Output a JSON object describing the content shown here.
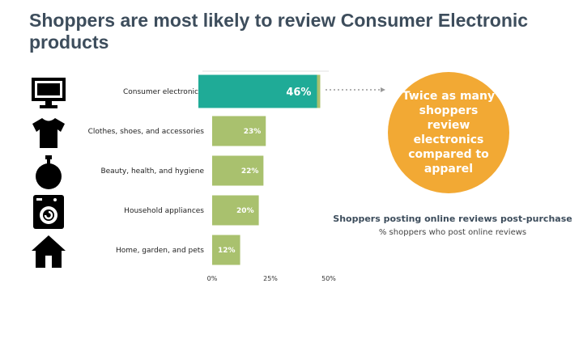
{
  "slide": {
    "title": "Shoppers are most likely to review Consumer Electronic products"
  },
  "icons": [
    {
      "name": "monitor-icon"
    },
    {
      "name": "tshirt-icon"
    },
    {
      "name": "perfume-bottle-icon"
    },
    {
      "name": "washing-machine-icon"
    },
    {
      "name": "house-icon"
    }
  ],
  "callout": {
    "text": "Twice as many shoppers review electronics compared to apparel"
  },
  "colors": {
    "highlight_bar": "#1fab97",
    "bar": "#a9c16e",
    "callout": "#f2a934",
    "title": "#3d4d5c"
  },
  "chart_data": {
    "type": "bar",
    "orientation": "horizontal",
    "title": "Shoppers posting online reviews post-purchase",
    "subtitle": "% shoppers who post online reviews",
    "xlabel": "",
    "ylabel": "",
    "categories": [
      "Consumer electronics",
      "Clothes, shoes, and accessories",
      "Beauty, health, and hygiene",
      "Household appliances",
      "Home, garden, and pets"
    ],
    "values": [
      46,
      23,
      22,
      20,
      12
    ],
    "value_labels": [
      "46%",
      "23%",
      "22%",
      "20%",
      "12%"
    ],
    "highlight_index": 0,
    "xlim": [
      0,
      50
    ],
    "ticks": [
      0,
      25,
      50
    ],
    "tick_labels": [
      "0%",
      "25%",
      "50%"
    ],
    "grid": false,
    "legend": "none"
  }
}
